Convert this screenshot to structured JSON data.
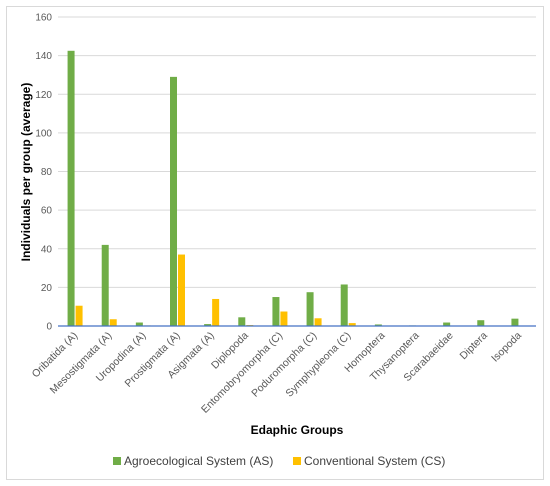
{
  "chart_data": {
    "type": "bar",
    "title": "",
    "xlabel": "Edaphic Groups",
    "ylabel": "Individuals per group (average)",
    "ylim": [
      0,
      160
    ],
    "yticks": [
      0,
      20,
      40,
      60,
      80,
      100,
      120,
      140,
      160
    ],
    "grid": true,
    "legend_position": "bottom",
    "categories": [
      "Oribatida (A)",
      "Mesostigmata (A)",
      "Uropodina (A)",
      "Prostigmata (A)",
      "Asigmata (A)",
      "Diplopoda",
      "Entomobryomorpha (C)",
      "Poduromorpha (C)",
      "Symphypleona (C)",
      "Homoptera",
      "Thysanoptera",
      "Scarabaeidae",
      "Diptera",
      "Isopoda"
    ],
    "series": [
      {
        "name": "Agroecological System (AS)",
        "color": "#70ad47",
        "values": [
          142.5,
          42,
          1.8,
          129,
          1,
          4.5,
          15,
          17.5,
          21.5,
          0.8,
          0.3,
          1.8,
          3,
          3.8
        ]
      },
      {
        "name": "Conventional System (CS)",
        "color": "#ffc000",
        "values": [
          10.5,
          3.5,
          0.3,
          37,
          14,
          0.5,
          7.5,
          4,
          1.5,
          0.2,
          0,
          0,
          0,
          0
        ]
      }
    ]
  }
}
